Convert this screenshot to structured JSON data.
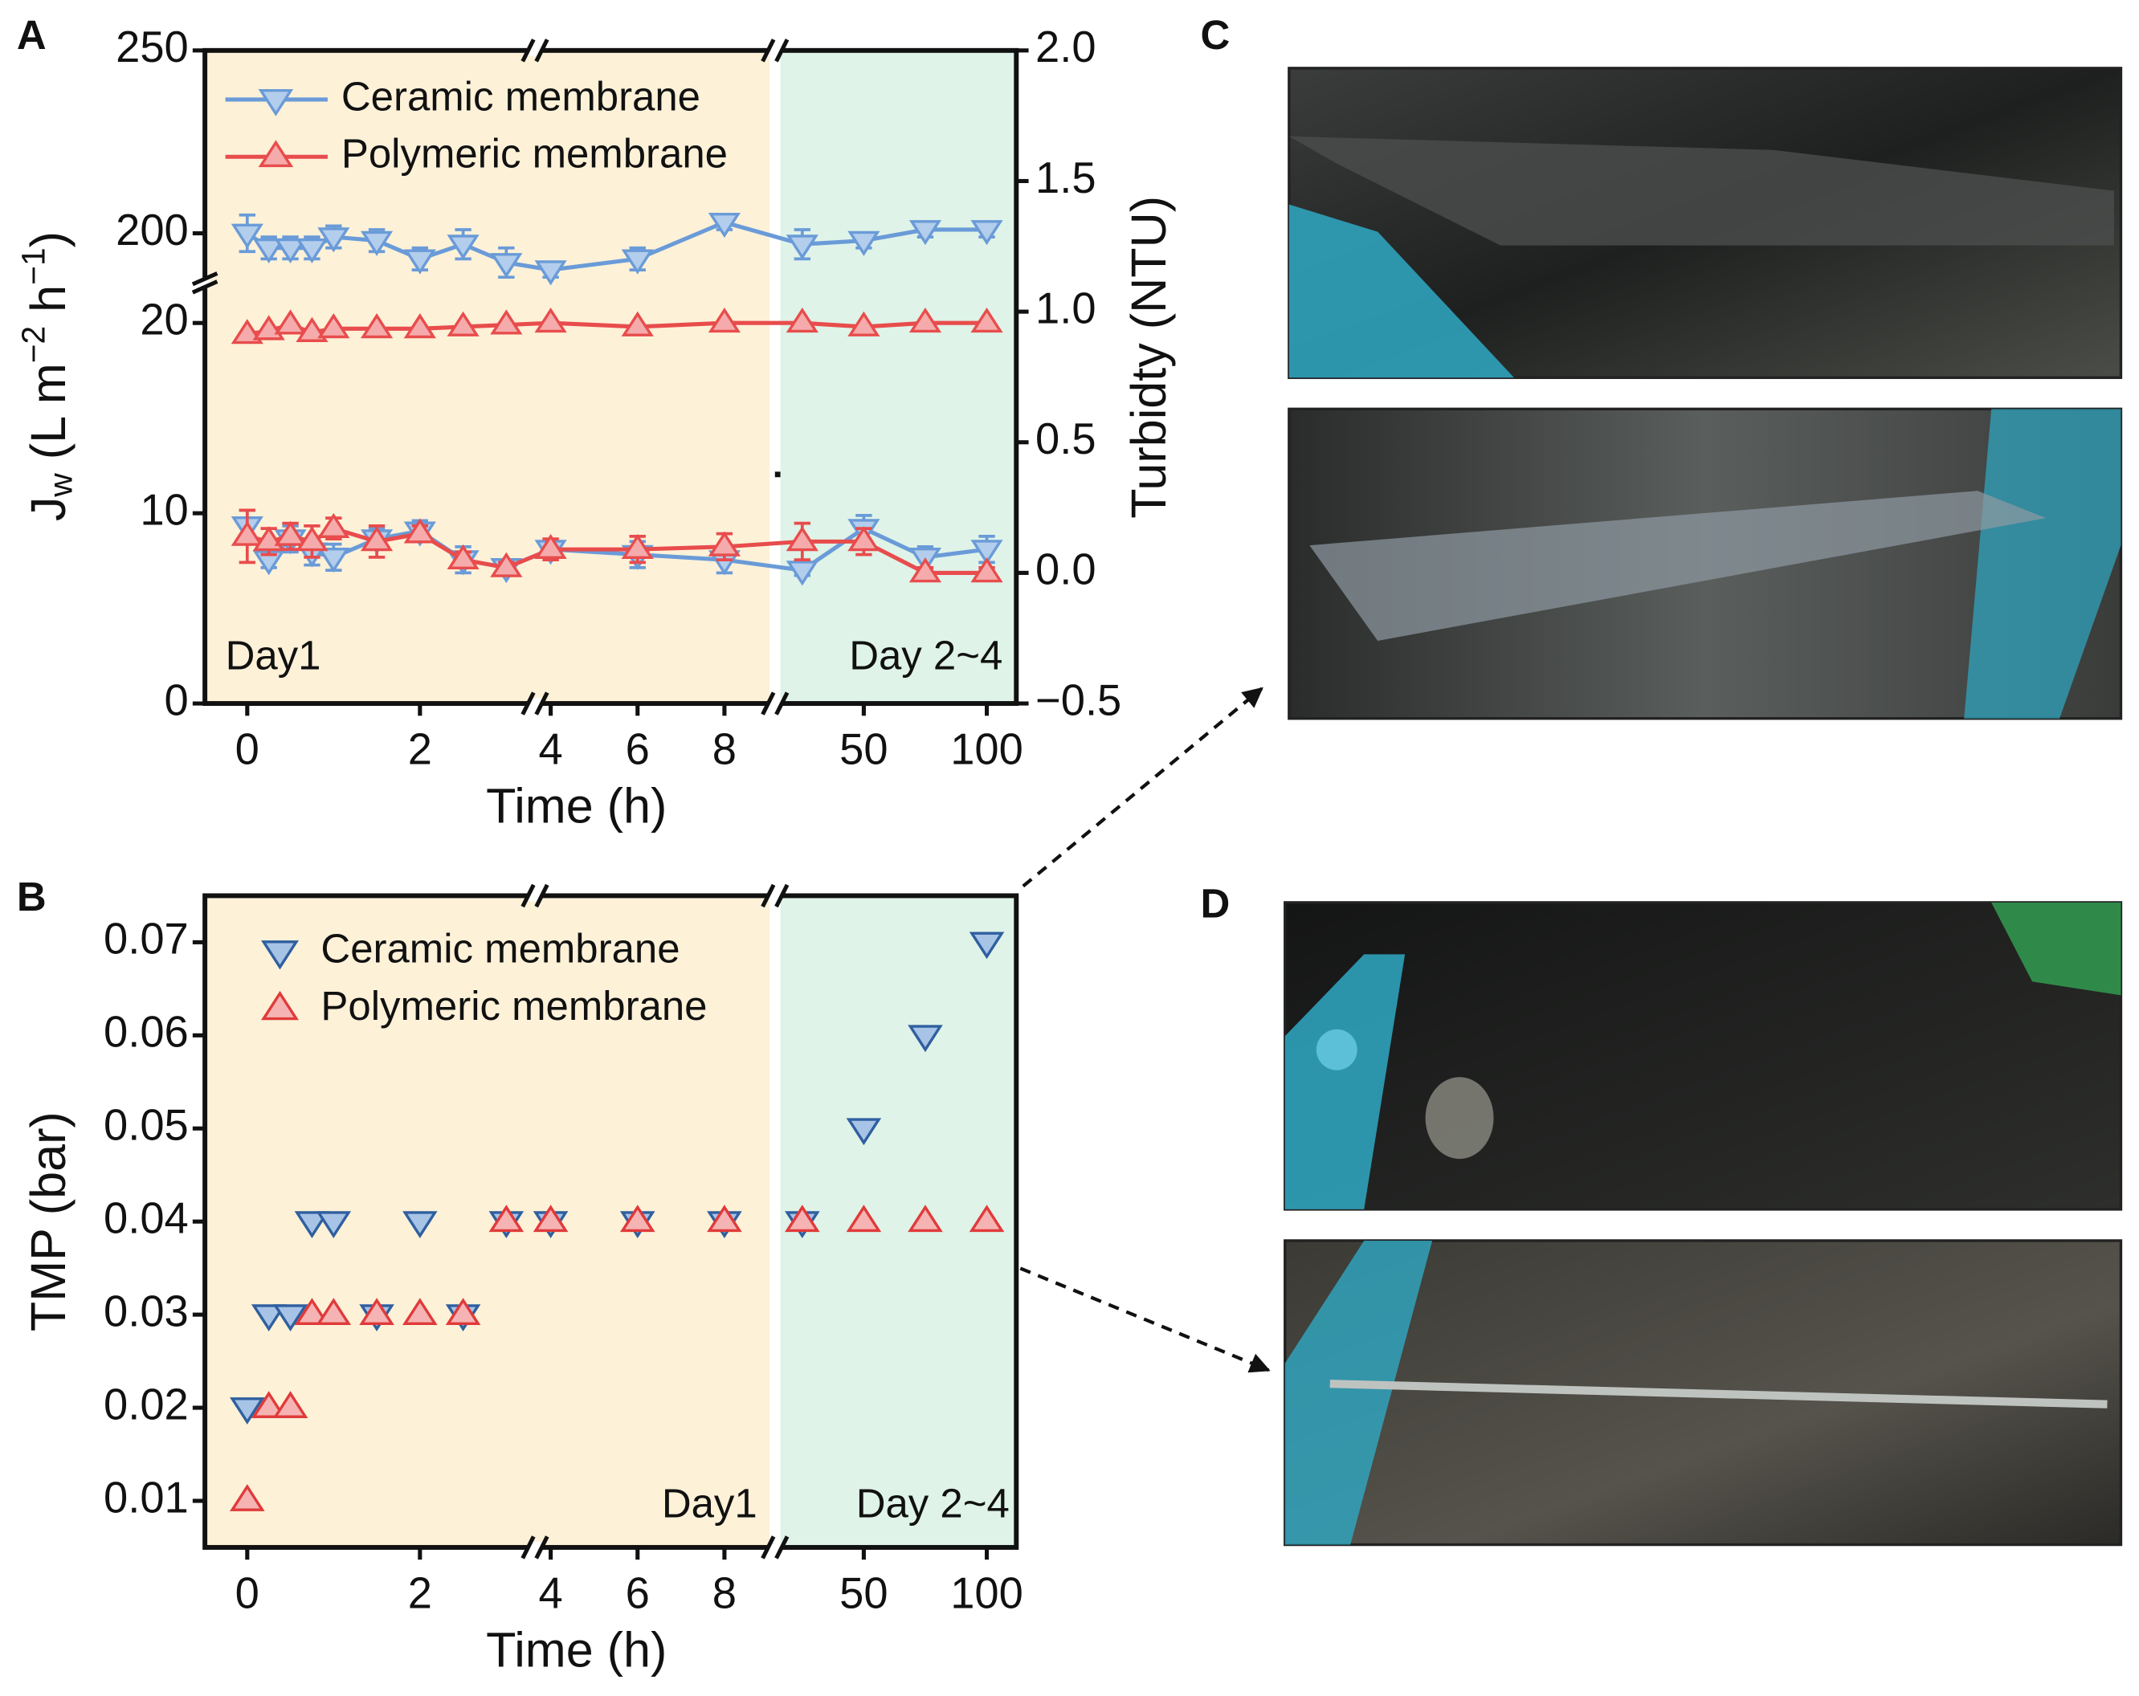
{
  "chart_data": [
    {
      "type": "line",
      "panel_label": "A",
      "xlabel": "Time (h)",
      "ylabel": [
        "J",
        "w",
        " (L m",
        "−2",
        " h",
        "−1",
        ")"
      ],
      "y2label": "Turbidty (NTU)",
      "x": [
        0,
        0.25,
        0.5,
        0.75,
        1,
        1.5,
        2,
        2.5,
        3,
        4,
        6,
        8,
        25,
        50,
        75,
        100
      ],
      "x_segments": [
        [
          -0.49,
          3.3
        ],
        [
          3.7,
          9.1
        ],
        [
          15,
          112
        ]
      ],
      "xticks": [
        0,
        2,
        4,
        6,
        8,
        50,
        100
      ],
      "y_segments": [
        [
          0,
          22
        ],
        [
          187,
          250
        ]
      ],
      "yticks": [
        0,
        10,
        20,
        200,
        250
      ],
      "y2lim": [
        -0.5,
        2.0
      ],
      "y2ticks": [
        {
          "value": -0.5,
          "label": "−0.5"
        },
        {
          "value": 0,
          "label": "0.0"
        },
        0.5,
        {
          "value": 1,
          "label": "1.0"
        },
        1.5,
        {
          "value": 2,
          "label": "2.0"
        }
      ],
      "shading": [
        "#fdf1d8",
        "#dff3e8"
      ],
      "annotations": [
        "Day1",
        "Day 2~4"
      ],
      "series": [
        {
          "name": "Ceramic membrane",
          "color": "#6a9bd8",
          "marker_fill": "#b3cdec",
          "marker": "down",
          "values": [
            200,
            196,
            196,
            196,
            199,
            198,
            193,
            197,
            192,
            190,
            193,
            203,
            197,
            198,
            201,
            201
          ],
          "errors": [
            5,
            3,
            3,
            3,
            3,
            3,
            3,
            4,
            4,
            2,
            3,
            2,
            4,
            2,
            2,
            2
          ]
        },
        {
          "name": "Polymeric membrane",
          "color": "#e84c4c",
          "marker_fill": "#f5abab",
          "marker": "up",
          "values": [
            19.4,
            19.6,
            19.9,
            19.5,
            19.7,
            19.7,
            19.7,
            19.8,
            19.9,
            20.0,
            19.8,
            20.0,
            20.0,
            19.8,
            20.0,
            20.0
          ]
        },
        {
          "axis": "y2",
          "color": "#6a9bd8",
          "marker_fill": "#b3cdec",
          "marker": "down",
          "values": [
            0.18,
            0.05,
            0.13,
            0.08,
            0.06,
            0.13,
            0.16,
            0.05,
            0.02,
            0.09,
            0.07,
            0.05,
            0.01,
            0.17,
            0.06,
            0.09
          ],
          "errors": [
            0.06,
            0.03,
            0.05,
            0.05,
            0.05,
            0.04,
            0.04,
            0.05,
            0.02,
            0.03,
            0.05,
            0.05,
            0.02,
            0.05,
            0.04,
            0.05
          ]
        },
        {
          "axis": "y2",
          "color": "#e84c4c",
          "marker_fill": "#f5abab",
          "marker": "up",
          "values": [
            0.14,
            0.12,
            0.14,
            0.12,
            0.17,
            0.12,
            0.15,
            0.05,
            0.02,
            0.09,
            0.09,
            0.1,
            0.12,
            0.12,
            0.0,
            0.0
          ],
          "errors": [
            0.1,
            0.05,
            0.05,
            0.06,
            0.04,
            0.06,
            0.03,
            0.03,
            0.02,
            0.04,
            0.05,
            0.05,
            0.07,
            0.05,
            0.02,
            0.02
          ]
        }
      ]
    },
    {
      "type": "scatter",
      "panel_label": "B",
      "xlabel": "Time (h)",
      "ylabel": [
        "TMP (bar)"
      ],
      "x": [
        0,
        0.25,
        0.5,
        0.75,
        1,
        1.5,
        2,
        2.5,
        3,
        4,
        6,
        8,
        25,
        50,
        75,
        100
      ],
      "x_segments": [
        [
          -0.49,
          3.3
        ],
        [
          3.7,
          9.1
        ],
        [
          15,
          112
        ]
      ],
      "xticks": [
        0,
        2,
        4,
        6,
        8,
        50,
        100
      ],
      "ylim": [
        0.005,
        0.075
      ],
      "yticks": [
        0.01,
        0.02,
        0.03,
        0.04,
        0.05,
        0.06,
        0.07
      ],
      "shading": [
        "#fdf1d8",
        "#dff3e8"
      ],
      "annotations": [
        "Day1",
        "Day 2~4"
      ],
      "series": [
        {
          "name": "Ceramic membrane",
          "color": "#2f5f9f",
          "marker_fill": "#a7c3e6",
          "marker": "down",
          "values": [
            0.02,
            0.03,
            0.03,
            0.04,
            0.04,
            0.03,
            0.04,
            0.03,
            0.04,
            0.04,
            0.04,
            0.04,
            0.04,
            0.05,
            0.06,
            0.07
          ]
        },
        {
          "name": "Polymeric membrane",
          "color": "#e03a3a",
          "marker_fill": "#f6b3b3",
          "marker": "up",
          "values": [
            0.01,
            0.02,
            0.02,
            0.03,
            0.03,
            0.03,
            0.03,
            0.03,
            0.04,
            0.04,
            0.04,
            0.04,
            0.04,
            0.04,
            0.04,
            0.04
          ]
        }
      ]
    }
  ],
  "photo_panels": [
    {
      "label": "C"
    },
    {
      "label": "D"
    }
  ]
}
